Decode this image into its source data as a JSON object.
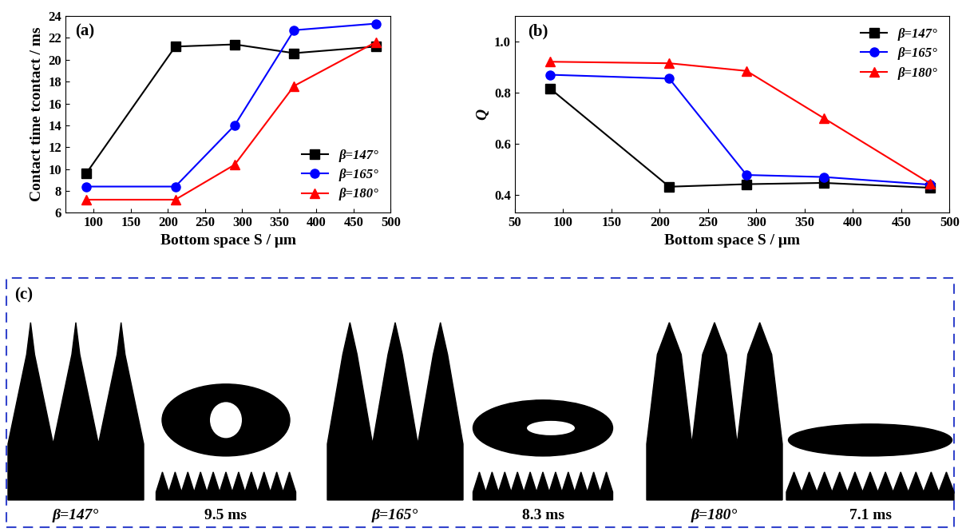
{
  "chart_data": [
    {
      "type": "line",
      "title": "(a)",
      "x_label": "Bottom space S / μm",
      "y_label": "Contact time tcontact / ms",
      "x": [
        90,
        210,
        290,
        370,
        480
      ],
      "series": [
        {
          "name": "β=147°",
          "color": "#000000",
          "marker": "square",
          "values": [
            9.6,
            21.2,
            21.4,
            20.6,
            21.2
          ]
        },
        {
          "name": "β=165°",
          "color": "#0000ff",
          "marker": "circle",
          "values": [
            8.4,
            8.4,
            14.0,
            22.7,
            23.3
          ]
        },
        {
          "name": "β=180°",
          "color": "#ff0000",
          "marker": "triangle",
          "values": [
            7.2,
            7.2,
            10.4,
            17.6,
            21.6
          ]
        }
      ],
      "xlim": [
        62,
        500
      ],
      "xticks": [
        100,
        150,
        200,
        250,
        300,
        350,
        400,
        450,
        500
      ],
      "ylim": [
        6,
        24
      ],
      "yticks": [
        6,
        8,
        10,
        12,
        14,
        16,
        18,
        20,
        22,
        24
      ],
      "legend": "lower right"
    },
    {
      "type": "line",
      "title": "(b)",
      "x_label": "Bottom space S / μm",
      "y_label": "Q",
      "x": [
        87,
        210,
        290,
        370,
        480
      ],
      "series": [
        {
          "name": "β=147°",
          "color": "#000000",
          "marker": "square",
          "values": [
            0.815,
            0.432,
            0.442,
            0.447,
            0.428
          ]
        },
        {
          "name": "β=165°",
          "color": "#0000ff",
          "marker": "circle",
          "values": [
            0.87,
            0.855,
            0.478,
            0.47,
            0.44
          ]
        },
        {
          "name": "β=180°",
          "color": "#ff0000",
          "marker": "triangle",
          "values": [
            0.921,
            0.915,
            0.885,
            0.7,
            0.445
          ]
        }
      ],
      "xlim": [
        50,
        500
      ],
      "xticks": [
        50,
        100,
        150,
        200,
        250,
        300,
        350,
        400,
        450,
        500
      ],
      "ylim": [
        0.33,
        1.1
      ],
      "yticks": [
        0.4,
        0.6,
        0.8,
        1.0
      ],
      "legend": "upper right"
    }
  ],
  "panel_c": {
    "label": "(c)",
    "items": [
      {
        "surface": "β=147°",
        "time": "9.5 ms"
      },
      {
        "surface": "β=165°",
        "time": "8.3 ms"
      },
      {
        "surface": "β=180°",
        "time": "7.1 ms"
      }
    ]
  }
}
